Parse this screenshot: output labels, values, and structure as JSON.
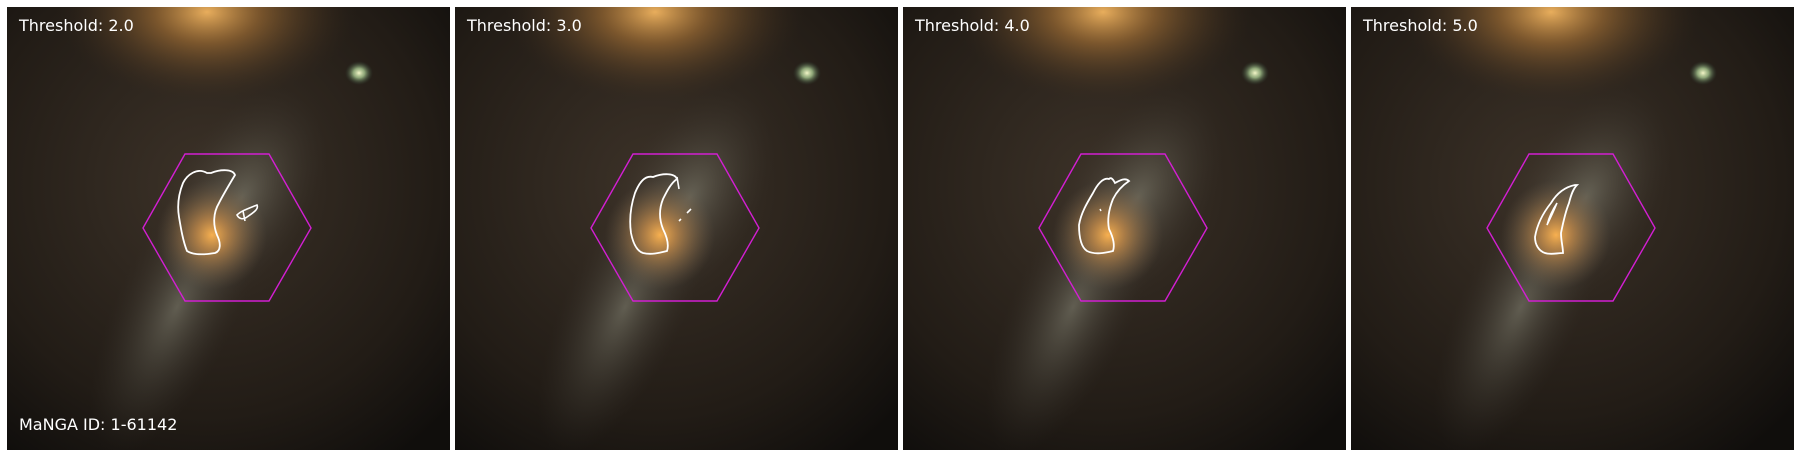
{
  "figure": {
    "manga_id": "MaNGA ID: 1-61142",
    "colors": {
      "hexagon": "#d21fd2",
      "contour": "#ffffff",
      "background": "#141210",
      "bulge": "#f0a850",
      "stars": "#e8f0c0"
    },
    "panels": [
      {
        "label": "Threshold: 2.0"
      },
      {
        "label": "Threshold: 3.0"
      },
      {
        "label": "Threshold: 4.0"
      },
      {
        "label": "Threshold: 5.0"
      }
    ]
  }
}
